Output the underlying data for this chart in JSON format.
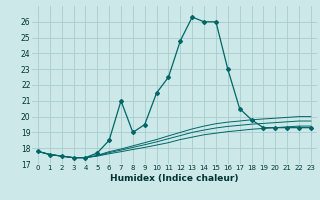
{
  "xlabel": "Humidex (Indice chaleur)",
  "bg_color": "#cce8e8",
  "grid_color": "#aacccc",
  "line_color": "#006666",
  "xlim": [
    -0.5,
    23.5
  ],
  "ylim": [
    17,
    27
  ],
  "yticks": [
    17,
    18,
    19,
    20,
    21,
    22,
    23,
    24,
    25,
    26
  ],
  "xticks": [
    0,
    1,
    2,
    3,
    4,
    5,
    6,
    7,
    8,
    9,
    10,
    11,
    12,
    13,
    14,
    15,
    16,
    17,
    18,
    19,
    20,
    21,
    22,
    23
  ],
  "main_line_x": [
    0,
    1,
    2,
    3,
    4,
    5,
    6,
    7,
    8,
    9,
    10,
    11,
    12,
    13,
    14,
    15,
    16,
    17,
    18,
    19,
    20,
    21,
    22,
    23
  ],
  "main_line_y": [
    17.8,
    17.6,
    17.5,
    17.4,
    17.4,
    17.7,
    18.5,
    21.0,
    19.0,
    19.5,
    21.5,
    22.5,
    24.8,
    26.3,
    26.0,
    26.0,
    23.0,
    20.5,
    19.8,
    19.3,
    19.3,
    19.3,
    19.3,
    19.3
  ],
  "line2_x": [
    0,
    1,
    2,
    3,
    4,
    5,
    6,
    7,
    8,
    9,
    10,
    11,
    12,
    13,
    14,
    15,
    16,
    17,
    18,
    19,
    20,
    21,
    22,
    23
  ],
  "line2_y": [
    17.8,
    17.6,
    17.5,
    17.4,
    17.4,
    17.5,
    17.65,
    17.78,
    17.92,
    18.05,
    18.2,
    18.35,
    18.55,
    18.7,
    18.85,
    18.95,
    19.05,
    19.12,
    19.2,
    19.25,
    19.3,
    19.35,
    19.4,
    19.4
  ],
  "line3_x": [
    0,
    1,
    2,
    3,
    4,
    5,
    6,
    7,
    8,
    9,
    10,
    11,
    12,
    13,
    14,
    15,
    16,
    17,
    18,
    19,
    20,
    21,
    22,
    23
  ],
  "line3_y": [
    17.8,
    17.6,
    17.5,
    17.4,
    17.4,
    17.52,
    17.72,
    17.88,
    18.05,
    18.22,
    18.4,
    18.6,
    18.8,
    19.0,
    19.15,
    19.28,
    19.38,
    19.45,
    19.52,
    19.57,
    19.62,
    19.67,
    19.72,
    19.72
  ],
  "line4_x": [
    0,
    1,
    2,
    3,
    4,
    5,
    6,
    7,
    8,
    9,
    10,
    11,
    12,
    13,
    14,
    15,
    16,
    17,
    18,
    19,
    20,
    21,
    22,
    23
  ],
  "line4_y": [
    17.8,
    17.6,
    17.5,
    17.4,
    17.4,
    17.55,
    17.78,
    17.95,
    18.15,
    18.35,
    18.55,
    18.78,
    19.0,
    19.22,
    19.4,
    19.55,
    19.65,
    19.72,
    19.8,
    19.85,
    19.9,
    19.95,
    20.0,
    20.0
  ]
}
